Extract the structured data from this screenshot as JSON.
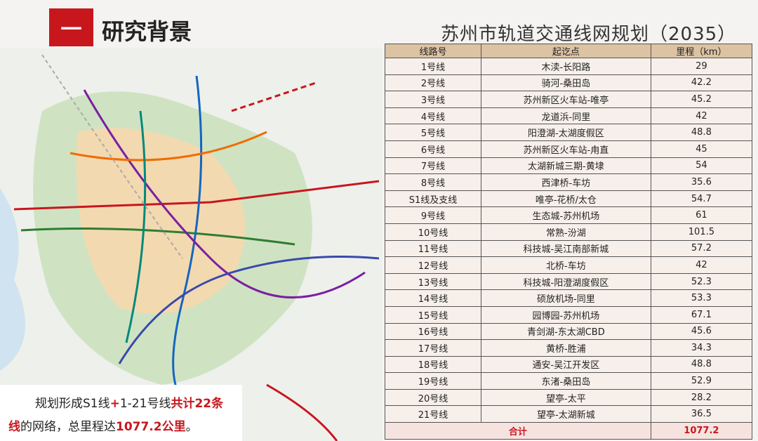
{
  "header": {
    "number": "一",
    "title": "研究背景"
  },
  "table": {
    "title": "苏州市轨道交通线网规划（2035）",
    "columns": [
      "线路号",
      "起讫点",
      "里程（km）"
    ],
    "rows": [
      [
        "1号线",
        "木渎-长阳路",
        29
      ],
      [
        "2号线",
        "骑河-桑田岛",
        42.2
      ],
      [
        "3号线",
        "苏州新区火车站-唯亭",
        45.2
      ],
      [
        "4号线",
        "龙道浜-同里",
        42
      ],
      [
        "5号线",
        "阳澄湖-太湖度假区",
        48.8
      ],
      [
        "6号线",
        "苏州新区火车站-甪直",
        45
      ],
      [
        "7号线",
        "太湖新城三期-黄埭",
        54
      ],
      [
        "8号线",
        "西津桥-车坊",
        35.6
      ],
      [
        "S1线及支线",
        "唯亭-花桥/太仓",
        54.7
      ],
      [
        "9号线",
        "生态城-苏州机场",
        61
      ],
      [
        "10号线",
        "常熟-汾湖",
        101.5
      ],
      [
        "11号线",
        "科技城-吴江南部新城",
        57.2
      ],
      [
        "12号线",
        "北桥-车坊",
        42
      ],
      [
        "13号线",
        "科技城-阳澄湖度假区",
        52.3
      ],
      [
        "14号线",
        "硕放机场-同里",
        53.3
      ],
      [
        "15号线",
        "园博园-苏州机场",
        67.1
      ],
      [
        "16号线",
        "青剑湖-东太湖CBD",
        45.6
      ],
      [
        "17号线",
        "黄桥-胜浦",
        34.3
      ],
      [
        "18号线",
        "通安-吴江开发区",
        48.8
      ],
      [
        "19号线",
        "东渚-桑田岛",
        52.9
      ],
      [
        "20号线",
        "望亭-太平",
        28.2
      ],
      [
        "21号线",
        "望亭-太湖新城",
        36.5
      ]
    ],
    "total": {
      "label": "合计",
      "value": 1077.2
    }
  },
  "caption": {
    "segments": [
      {
        "text": "规划形成S1线",
        "red": false
      },
      {
        "text": "+",
        "red": true
      },
      {
        "text": "1-21号线",
        "red": false
      },
      {
        "text": "共计22条",
        "red": true
      }
    ],
    "segments2": [
      {
        "text": "线",
        "red": true
      },
      {
        "text": "的网络，总里程达",
        "red": false
      },
      {
        "text": "1077.2公里",
        "red": true
      },
      {
        "text": "。",
        "red": false
      }
    ]
  }
}
